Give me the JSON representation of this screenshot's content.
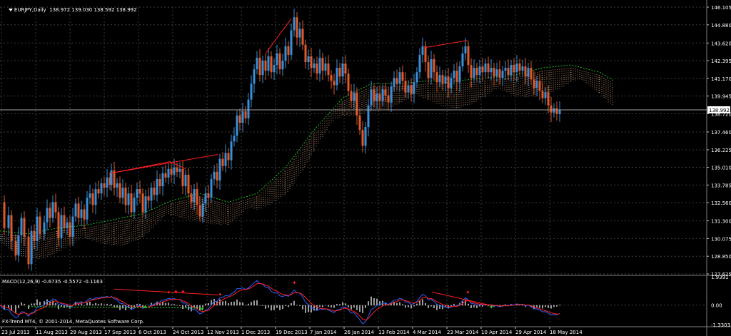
{
  "chart_header": {
    "menu_icon": "triangle-down-icon",
    "symbol": "EURJPY,Daily",
    "ohlc": "138.972 139.030 138.592 138.992"
  },
  "macd_header": {
    "label": "MACD(12,26,9) -0.6735 -0.5572 -0.1163"
  },
  "copyright": "FX-Trend MT4, © 2001-2014, MetaQuotes Software Corp.",
  "colors": {
    "background": "#000000",
    "grid": "#3d3d3d",
    "bull": "#3a8fd8",
    "bear": "#e05a2a",
    "cloud": "#d8a27a",
    "cloud_alt": "#e8e8e8",
    "macd_main": "#3060ff",
    "macd_signal": "#ff2020",
    "histogram": "#d0d0d0",
    "divergence": "#ff2020",
    "marker_green": "#20e020"
  },
  "chart_data": [
    {
      "type": "candlestick",
      "symbol": "EURJPY",
      "timeframe": "Daily",
      "y_ticks": [
        "146.105",
        "144.880",
        "143.620",
        "142.395",
        "141.170",
        "139.945",
        "138.720",
        "137.460",
        "136.225",
        "135.010",
        "133.785",
        "132.560",
        "131.300",
        "130.075",
        "128.850",
        "127.625"
      ],
      "current_price": "138.992",
      "x_ticks": [
        "23 Jul 2013",
        "11 Aug 2013",
        "29 Aug 2013",
        "17 Sep 2013",
        "6 Oct 2013",
        "24 Oct 2013",
        "12 Nov 2013",
        "1 Dec 2013",
        "19 Dec 2013",
        "7 Jan 2014",
        "26 Jan 2014",
        "13 Feb 2014",
        "4 Mar 2014",
        "23 Mar 2014",
        "10 Apr 2014",
        "29 Apr 2014",
        "18 May 2014"
      ],
      "ylim": [
        127.625,
        146.105
      ],
      "close_path": [
        [
          0,
          132.6
        ],
        [
          6,
          130.8
        ],
        [
          12,
          131.7
        ],
        [
          16,
          129.9
        ],
        [
          22,
          128.9
        ],
        [
          26,
          130.3
        ],
        [
          30,
          131.5
        ],
        [
          34,
          130.2
        ],
        [
          40,
          128.3
        ],
        [
          44,
          130.6
        ],
        [
          48,
          129.9
        ],
        [
          52,
          131.6
        ],
        [
          56,
          130.4
        ],
        [
          62,
          131.2
        ],
        [
          66,
          132.2
        ],
        [
          70,
          131.5
        ],
        [
          74,
          132.6
        ],
        [
          78,
          131.9
        ],
        [
          82,
          130.1
        ],
        [
          86,
          131.7
        ],
        [
          90,
          130.8
        ],
        [
          94,
          131.2
        ],
        [
          98,
          130.2
        ],
        [
          102,
          131.6
        ],
        [
          106,
          132.5
        ],
        [
          110,
          131.5
        ],
        [
          114,
          132.1
        ],
        [
          118,
          131.4
        ],
        [
          122,
          132.9
        ],
        [
          126,
          133.2
        ],
        [
          130,
          132.4
        ],
        [
          134,
          133.5
        ],
        [
          138,
          133.2
        ],
        [
          142,
          133.9
        ],
        [
          146,
          133.6
        ],
        [
          150,
          134.3
        ],
        [
          154,
          133.8
        ],
        [
          156,
          134.8
        ],
        [
          160,
          133.6
        ],
        [
          164,
          133.9
        ],
        [
          168,
          132.9
        ],
        [
          172,
          133.6
        ],
        [
          176,
          132.4
        ],
        [
          180,
          133.2
        ],
        [
          184,
          131.9
        ],
        [
          188,
          132.9
        ],
        [
          192,
          133.5
        ],
        [
          196,
          133.2
        ],
        [
          200,
          131.9
        ],
        [
          204,
          133.0
        ],
        [
          208,
          132.7
        ],
        [
          212,
          133.6
        ],
        [
          216,
          133.1
        ],
        [
          220,
          134.2
        ],
        [
          224,
          133.7
        ],
        [
          228,
          134.6
        ],
        [
          232,
          134.3
        ],
        [
          236,
          134.9
        ],
        [
          240,
          134.5
        ],
        [
          244,
          135.0
        ],
        [
          248,
          134.7
        ],
        [
          252,
          134.9
        ],
        [
          256,
          133.7
        ],
        [
          260,
          134.5
        ],
        [
          264,
          133.2
        ],
        [
          268,
          132.6
        ],
        [
          272,
          133.5
        ],
        [
          276,
          132.4
        ],
        [
          280,
          131.6
        ],
        [
          284,
          132.5
        ],
        [
          288,
          133.2
        ],
        [
          292,
          132.9
        ],
        [
          296,
          134.2
        ],
        [
          300,
          134.7
        ],
        [
          304,
          134.1
        ],
        [
          308,
          135.6
        ],
        [
          312,
          135.1
        ],
        [
          316,
          136.0
        ],
        [
          320,
          135.5
        ],
        [
          324,
          136.8
        ],
        [
          328,
          137.2
        ],
        [
          332,
          138.6
        ],
        [
          336,
          138.1
        ],
        [
          340,
          138.9
        ],
        [
          344,
          138.4
        ],
        [
          348,
          139.7
        ],
        [
          352,
          140.8
        ],
        [
          356,
          141.8
        ],
        [
          360,
          142.6
        ],
        [
          364,
          141.4
        ],
        [
          368,
          142.4
        ],
        [
          372,
          141.7
        ],
        [
          376,
          142.7
        ],
        [
          380,
          141.6
        ],
        [
          384,
          142.1
        ],
        [
          388,
          142.9
        ],
        [
          392,
          141.8
        ],
        [
          396,
          142.4
        ],
        [
          400,
          143.4
        ],
        [
          404,
          142.8
        ],
        [
          408,
          144.5
        ],
        [
          412,
          145.4
        ],
        [
          416,
          144.0
        ],
        [
          420,
          144.6
        ],
        [
          424,
          143.5
        ],
        [
          428,
          142.3
        ],
        [
          432,
          142.7
        ],
        [
          436,
          141.9
        ],
        [
          440,
          142.2
        ],
        [
          444,
          141.5
        ],
        [
          448,
          142.6
        ],
        [
          452,
          141.7
        ],
        [
          456,
          142.2
        ],
        [
          460,
          141.4
        ],
        [
          464,
          141.0
        ],
        [
          468,
          140.7
        ],
        [
          472,
          141.9
        ],
        [
          476,
          141.3
        ],
        [
          480,
          142.2
        ],
        [
          484,
          141.5
        ],
        [
          488,
          140.3
        ],
        [
          492,
          139.6
        ],
        [
          496,
          140.2
        ],
        [
          500,
          138.6
        ],
        [
          504,
          137.6
        ],
        [
          508,
          136.5
        ],
        [
          512,
          137.8
        ],
        [
          516,
          139.3
        ],
        [
          520,
          140.4
        ],
        [
          524,
          139.6
        ],
        [
          528,
          140.1
        ],
        [
          532,
          139.6
        ],
        [
          536,
          140.4
        ],
        [
          540,
          140.0
        ],
        [
          544,
          139.5
        ],
        [
          548,
          140.6
        ],
        [
          552,
          141.2
        ],
        [
          556,
          140.8
        ],
        [
          560,
          141.6
        ],
        [
          564,
          141.0
        ],
        [
          568,
          140.2
        ],
        [
          572,
          140.7
        ],
        [
          576,
          140.1
        ],
        [
          580,
          140.9
        ],
        [
          584,
          141.6
        ],
        [
          588,
          142.8
        ],
        [
          592,
          143.4
        ],
        [
          596,
          142.3
        ],
        [
          600,
          141.2
        ],
        [
          604,
          142.5
        ],
        [
          608,
          141.6
        ],
        [
          612,
          140.9
        ],
        [
          616,
          141.4
        ],
        [
          620,
          140.8
        ],
        [
          624,
          141.3
        ],
        [
          628,
          140.5
        ],
        [
          632,
          141.2
        ],
        [
          636,
          141.7
        ],
        [
          640,
          140.9
        ],
        [
          644,
          142.0
        ],
        [
          648,
          142.9
        ],
        [
          652,
          143.4
        ],
        [
          656,
          142.1
        ],
        [
          660,
          141.2
        ],
        [
          664,
          141.9
        ],
        [
          668,
          141.4
        ],
        [
          672,
          142.0
        ],
        [
          676,
          141.6
        ],
        [
          680,
          142.2
        ],
        [
          684,
          141.6
        ],
        [
          688,
          141.9
        ],
        [
          692,
          141.3
        ],
        [
          696,
          141.8
        ],
        [
          700,
          141.2
        ],
        [
          704,
          141.7
        ],
        [
          708,
          141.9
        ],
        [
          712,
          141.4
        ],
        [
          716,
          142.1
        ],
        [
          720,
          141.6
        ],
        [
          724,
          142.2
        ],
        [
          728,
          141.7
        ],
        [
          732,
          142.0
        ],
        [
          736,
          141.3
        ],
        [
          740,
          141.9
        ],
        [
          744,
          141.1
        ],
        [
          748,
          140.5
        ],
        [
          752,
          141.0
        ],
        [
          756,
          140.3
        ],
        [
          760,
          139.8
        ],
        [
          764,
          140.2
        ],
        [
          768,
          139.3
        ],
        [
          772,
          138.8
        ],
        [
          776,
          139.1
        ],
        [
          780,
          138.7
        ],
        [
          784,
          139.0
        ]
      ],
      "cloud_path": [
        [
          0,
          130.4
        ],
        [
          40,
          130.2
        ],
        [
          80,
          130.6
        ],
        [
          120,
          130.8
        ],
        [
          160,
          131.2
        ],
        [
          200,
          131.6
        ],
        [
          240,
          132.5
        ],
        [
          280,
          133.0
        ],
        [
          320,
          132.4
        ],
        [
          360,
          133.0
        ],
        [
          400,
          134.8
        ],
        [
          440,
          137.4
        ],
        [
          480,
          139.6
        ],
        [
          520,
          140.6
        ],
        [
          560,
          140.6
        ],
        [
          600,
          140.8
        ],
        [
          640,
          140.8
        ],
        [
          680,
          141.0
        ],
        [
          720,
          141.2
        ],
        [
          760,
          141.7
        ],
        [
          800,
          141.9
        ],
        [
          840,
          141.4
        ],
        [
          860,
          140.8
        ]
      ],
      "divergence_lines": [
        [
          [
            155,
            134.6
          ],
          [
            238,
            135.4
          ],
          [
            260,
            134.9
          ]
        ],
        [
          [
            155,
            134.6
          ],
          [
            305,
            135.9
          ]
        ],
        [
          [
            372,
            142.9
          ],
          [
            408,
            145.3
          ]
        ],
        [
          [
            595,
            143.3
          ],
          [
            655,
            143.8
          ]
        ]
      ]
    },
    {
      "type": "macd",
      "label": "MACD(12,26,9)",
      "values": {
        "main": "-0.6735",
        "signal": "-0.5572",
        "histogram": "-0.1163"
      },
      "y_ticks": [
        "1.9391",
        "0.00",
        "-1.3303"
      ],
      "ylim": [
        -1.3303,
        1.9391
      ]
    }
  ]
}
